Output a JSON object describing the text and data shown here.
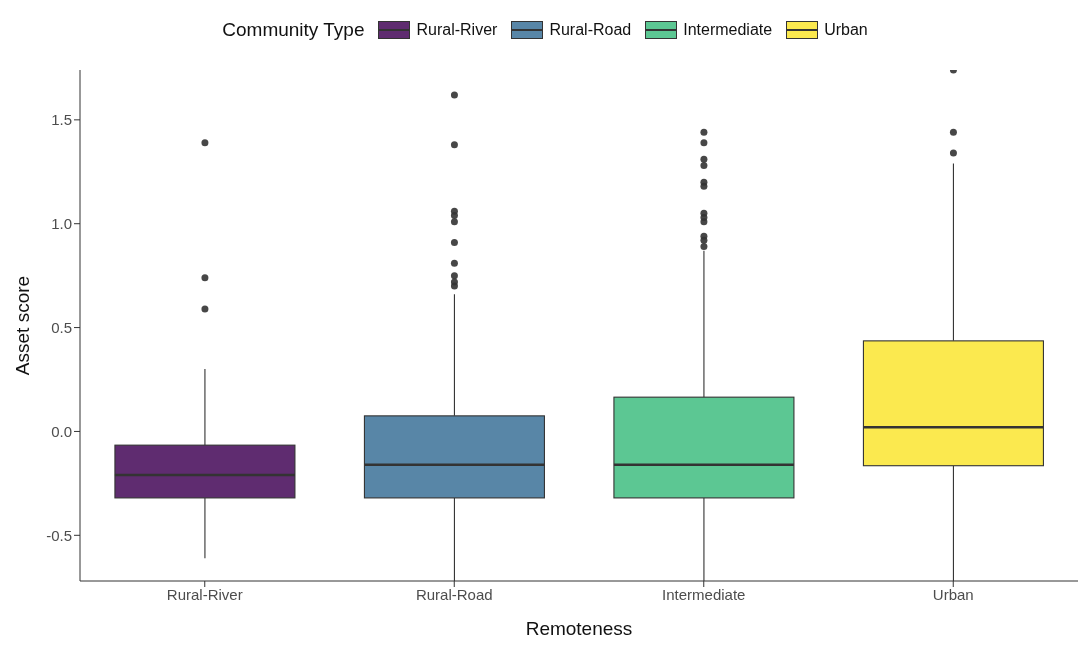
{
  "chart_data": {
    "type": "box",
    "xlabel": "Remoteness",
    "ylabel": "Asset score",
    "legend_title": "Community Type",
    "legend": "top",
    "grid": false,
    "categories": [
      "Rural-River",
      "Rural-Road",
      "Intermediate",
      "Urban"
    ],
    "series": [
      {
        "name": "Rural-River",
        "color": "#5f2c70",
        "boxes": [
          {
            "low": -0.61,
            "q1": -0.32,
            "median": -0.21,
            "q3": -0.066,
            "high": 0.3,
            "outliers": [
              1.39,
              0.74,
              0.59
            ]
          },
          null,
          null,
          null
        ]
      },
      {
        "name": "Rural-Road",
        "color": "#5886a7",
        "boxes": [
          null,
          {
            "low": -0.72,
            "q1": -0.32,
            "median": -0.16,
            "q3": 0.075,
            "high": 0.66,
            "outliers": [
              1.62,
              1.38,
              1.06,
              1.04,
              1.01,
              0.91,
              0.81,
              0.75,
              0.72,
              0.7
            ]
          },
          null,
          null
        ]
      },
      {
        "name": "Intermediate",
        "color": "#5cc793",
        "boxes": [
          null,
          null,
          {
            "low": -0.72,
            "q1": -0.32,
            "median": -0.16,
            "q3": 0.165,
            "high": 0.87,
            "outliers": [
              1.44,
              1.39,
              1.31,
              1.28,
              1.2,
              1.18,
              1.05,
              1.03,
              1.01,
              0.94,
              0.92,
              0.89
            ]
          },
          null
        ]
      },
      {
        "name": "Urban",
        "color": "#fbe94f",
        "boxes": [
          null,
          null,
          null,
          {
            "low": -0.72,
            "q1": -0.165,
            "median": 0.02,
            "q3": 0.436,
            "high": 1.29,
            "outliers": [
              1.74,
              1.44,
              1.34
            ]
          }
        ]
      }
    ],
    "ylim": [
      -0.72,
      1.74
    ],
    "yticks": [
      {
        "value": -0.5,
        "label": "-0.5"
      },
      {
        "value": 0,
        "label": "0.0"
      },
      {
        "value": 0.5,
        "label": "0.5"
      },
      {
        "value": 1,
        "label": "1.0"
      },
      {
        "value": 1.5,
        "label": "1.5"
      }
    ]
  }
}
